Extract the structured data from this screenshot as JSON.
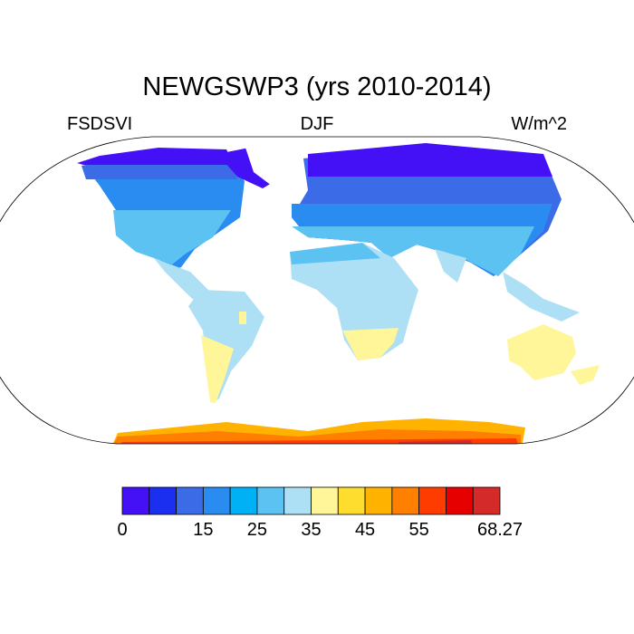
{
  "title": "NEWGSWP3 (yrs 2010-2014)",
  "left_label": "FSDSVI",
  "center_label": "DJF",
  "right_label": "W/m^2",
  "colorbar": {
    "colors": [
      "#4410f5",
      "#1a2ff0",
      "#3b6be6",
      "#2a8cf0",
      "#00b2f5",
      "#5cc2f2",
      "#ade0f5",
      "#fff599",
      "#ffdd2e",
      "#ffb300",
      "#ff7f00",
      "#ff3c00",
      "#e60000",
      "#d42a2a"
    ],
    "labels": [
      {
        "text": "0",
        "boundary": 0
      },
      {
        "text": "15",
        "boundary": 3
      },
      {
        "text": "25",
        "boundary": 5
      },
      {
        "text": "35",
        "boundary": 7
      },
      {
        "text": "45",
        "boundary": 9
      },
      {
        "text": "55",
        "boundary": 11
      },
      {
        "text": "68.27",
        "boundary": 14
      }
    ]
  }
}
